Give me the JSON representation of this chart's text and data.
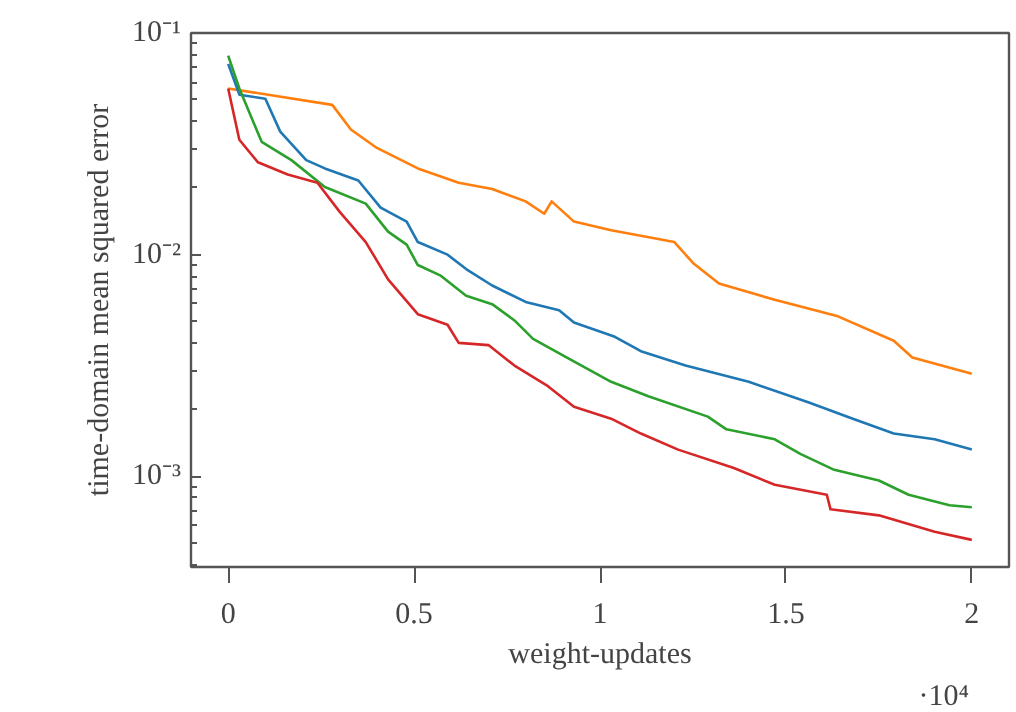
{
  "chart_data": {
    "type": "line",
    "xlabel": "weight-updates",
    "ylabel": "time-domain mean squared error",
    "annotations": [
      "·10⁴"
    ],
    "log": "y",
    "grid": false,
    "line_style": "solid",
    "xlim": [
      -0.1,
      2.1
    ],
    "xticks": [
      0,
      0.5,
      1,
      1.5,
      2
    ],
    "ylim": [
      0.00039,
      0.1
    ],
    "yticks": [
      {
        "value": 0.001,
        "label": "10⁻³"
      },
      {
        "value": 0.01,
        "label": "10⁻²"
      },
      {
        "value": 0.1,
        "label": "10⁻¹"
      }
    ],
    "series": [
      {
        "color": "#ff7f0e",
        "x": [
          0,
          0.28,
          0.33,
          0.4,
          0.51,
          0.62,
          0.71,
          0.8,
          0.85,
          0.87,
          0.93,
          1.03,
          1.2,
          1.25,
          1.32,
          1.47,
          1.64,
          1.79,
          1.84,
          2.0
        ],
        "values": [
          0.0562,
          0.0474,
          0.0367,
          0.0303,
          0.0245,
          0.0211,
          0.0198,
          0.0174,
          0.0153,
          0.0174,
          0.0141,
          0.0129,
          0.0114,
          0.00918,
          0.00742,
          0.00626,
          0.00527,
          0.00409,
          0.00344,
          0.0029
        ]
      },
      {
        "color": "#1f77b4",
        "x": [
          0,
          0.03,
          0.1,
          0.14,
          0.21,
          0.26,
          0.35,
          0.41,
          0.48,
          0.51,
          0.59,
          0.64,
          0.71,
          0.8,
          0.89,
          0.93,
          1.04,
          1.11,
          1.23,
          1.4,
          1.56,
          1.68,
          1.79,
          1.9,
          2.0
        ],
        "values": [
          0.0726,
          0.0527,
          0.0505,
          0.0359,
          0.0267,
          0.0245,
          0.0216,
          0.0163,
          0.0141,
          0.0114,
          0.01,
          0.00861,
          0.00726,
          0.00612,
          0.00562,
          0.00494,
          0.00426,
          0.00367,
          0.00316,
          0.00267,
          0.00216,
          0.00182,
          0.00156,
          0.00147,
          0.00132
        ]
      },
      {
        "color": "#2ca02c",
        "x": [
          0,
          0.03,
          0.09,
          0.17,
          0.26,
          0.37,
          0.43,
          0.48,
          0.51,
          0.57,
          0.64,
          0.71,
          0.77,
          0.82,
          0.91,
          1.03,
          1.13,
          1.29,
          1.34,
          1.47,
          1.54,
          1.63,
          1.75,
          1.83,
          1.94,
          2.0
        ],
        "values": [
          0.0791,
          0.0562,
          0.0323,
          0.0267,
          0.0202,
          0.017,
          0.0127,
          0.0111,
          0.00898,
          0.00807,
          0.00653,
          0.00598,
          0.00505,
          0.00417,
          0.00344,
          0.00267,
          0.0023,
          0.00186,
          0.00163,
          0.00147,
          0.00126,
          0.00107,
          0.000958,
          0.000826,
          0.000741,
          0.000726
        ]
      },
      {
        "color": "#d62728",
        "x": [
          0,
          0.03,
          0.08,
          0.16,
          0.24,
          0.3,
          0.37,
          0.43,
          0.51,
          0.59,
          0.62,
          0.7,
          0.77,
          0.86,
          0.93,
          1.03,
          1.11,
          1.21,
          1.36,
          1.47,
          1.61,
          1.62,
          1.75,
          1.9,
          2.0
        ],
        "values": [
          0.0562,
          0.033,
          0.0261,
          0.023,
          0.0211,
          0.0156,
          0.0114,
          0.00774,
          0.00539,
          0.00483,
          0.004,
          0.00391,
          0.00316,
          0.00255,
          0.00206,
          0.00182,
          0.00156,
          0.00132,
          0.00109,
          0.000916,
          0.000826,
          0.00071,
          0.000667,
          0.000562,
          0.000517
        ]
      }
    ]
  }
}
